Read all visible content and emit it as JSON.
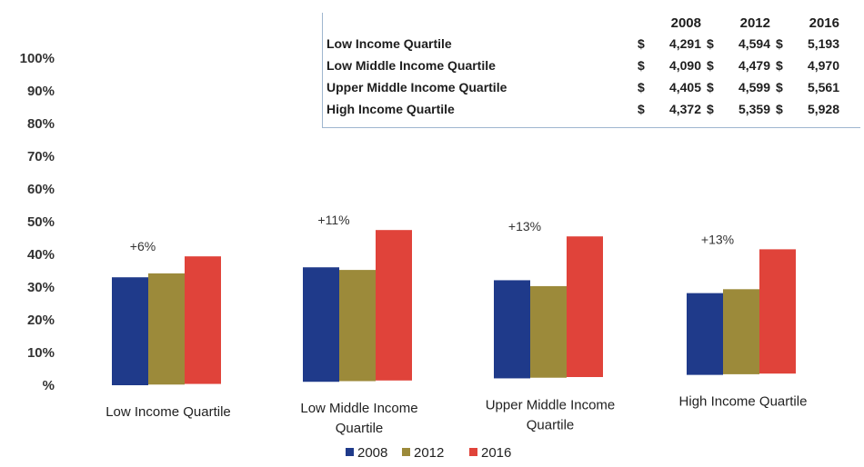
{
  "chart_data": {
    "type": "bar",
    "categories": [
      [
        "Low Income Quartile"
      ],
      [
        "Low Middle Income",
        "Quartile"
      ],
      [
        "Upper Middle Income",
        "Quartile"
      ],
      [
        "High Income Quartile"
      ]
    ],
    "series": [
      {
        "name": "2008",
        "color": "#1f3a8a",
        "values": [
          33,
          35,
          30,
          25
        ]
      },
      {
        "name": "2012",
        "color": "#9c8a3a",
        "values": [
          34,
          34,
          28,
          26
        ]
      },
      {
        "name": "2016",
        "color": "#e0433a",
        "values": [
          39,
          46,
          43,
          38
        ]
      }
    ],
    "annotations": [
      "+6%",
      "+11%",
      "+13%",
      "+13%"
    ],
    "yticks": [
      "%",
      "10%",
      "20%",
      "30%",
      "40%",
      "50%",
      "60%",
      "70%",
      "80%",
      "90%",
      "100%"
    ],
    "ylim": [
      0,
      100
    ],
    "legend": [
      "2008",
      "2012",
      "2016"
    ],
    "legend_position": "bottom",
    "grid": false
  },
  "inset_table": {
    "columns": [
      "2008",
      "2012",
      "2016"
    ],
    "currency": "$",
    "rows": [
      {
        "label": "Low Income Quartile",
        "values": [
          "4,291",
          "4,594",
          "5,193"
        ]
      },
      {
        "label": "Low Middle Income Quartile",
        "values": [
          "4,090",
          "4,479",
          "4,970"
        ]
      },
      {
        "label": "Upper Middle Income Quartile",
        "values": [
          "4,405",
          "4,599",
          "5,561"
        ]
      },
      {
        "label": "High Income Quartile",
        "values": [
          "4,372",
          "5,359",
          "5,928"
        ]
      }
    ]
  }
}
